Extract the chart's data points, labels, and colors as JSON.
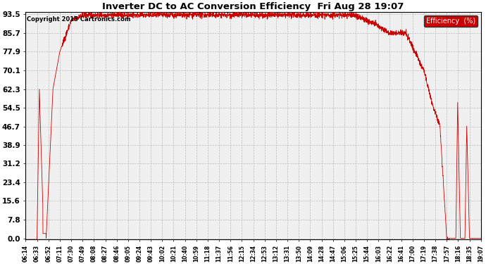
{
  "title": "Inverter DC to AC Conversion Efficiency  Fri Aug 28 19:07",
  "copyright": "Copyright 2015 Cartronics.com",
  "legend_label": "Efficiency  (%)",
  "legend_bg": "#cc0000",
  "legend_text_color": "#ffffff",
  "line_color": "#cc0000",
  "bg_color": "#ffffff",
  "plot_bg_color": "#f0f0f0",
  "grid_color": "#bbbbbb",
  "yticks": [
    0.0,
    7.8,
    15.6,
    23.4,
    31.2,
    38.9,
    46.7,
    54.5,
    62.3,
    70.1,
    77.9,
    85.7,
    93.5
  ],
  "xtick_labels": [
    "06:14",
    "06:33",
    "06:52",
    "07:11",
    "07:30",
    "07:49",
    "08:08",
    "08:27",
    "08:46",
    "09:05",
    "09:24",
    "09:43",
    "10:02",
    "10:21",
    "10:40",
    "10:59",
    "11:18",
    "11:37",
    "11:56",
    "12:15",
    "12:34",
    "12:53",
    "13:12",
    "13:31",
    "13:50",
    "14:09",
    "14:28",
    "14:47",
    "15:06",
    "15:25",
    "15:44",
    "16:03",
    "16:22",
    "16:41",
    "17:00",
    "17:19",
    "17:38",
    "17:57",
    "18:16",
    "18:35",
    "19:07"
  ],
  "ymin": -0.5,
  "ymax": 94.5
}
